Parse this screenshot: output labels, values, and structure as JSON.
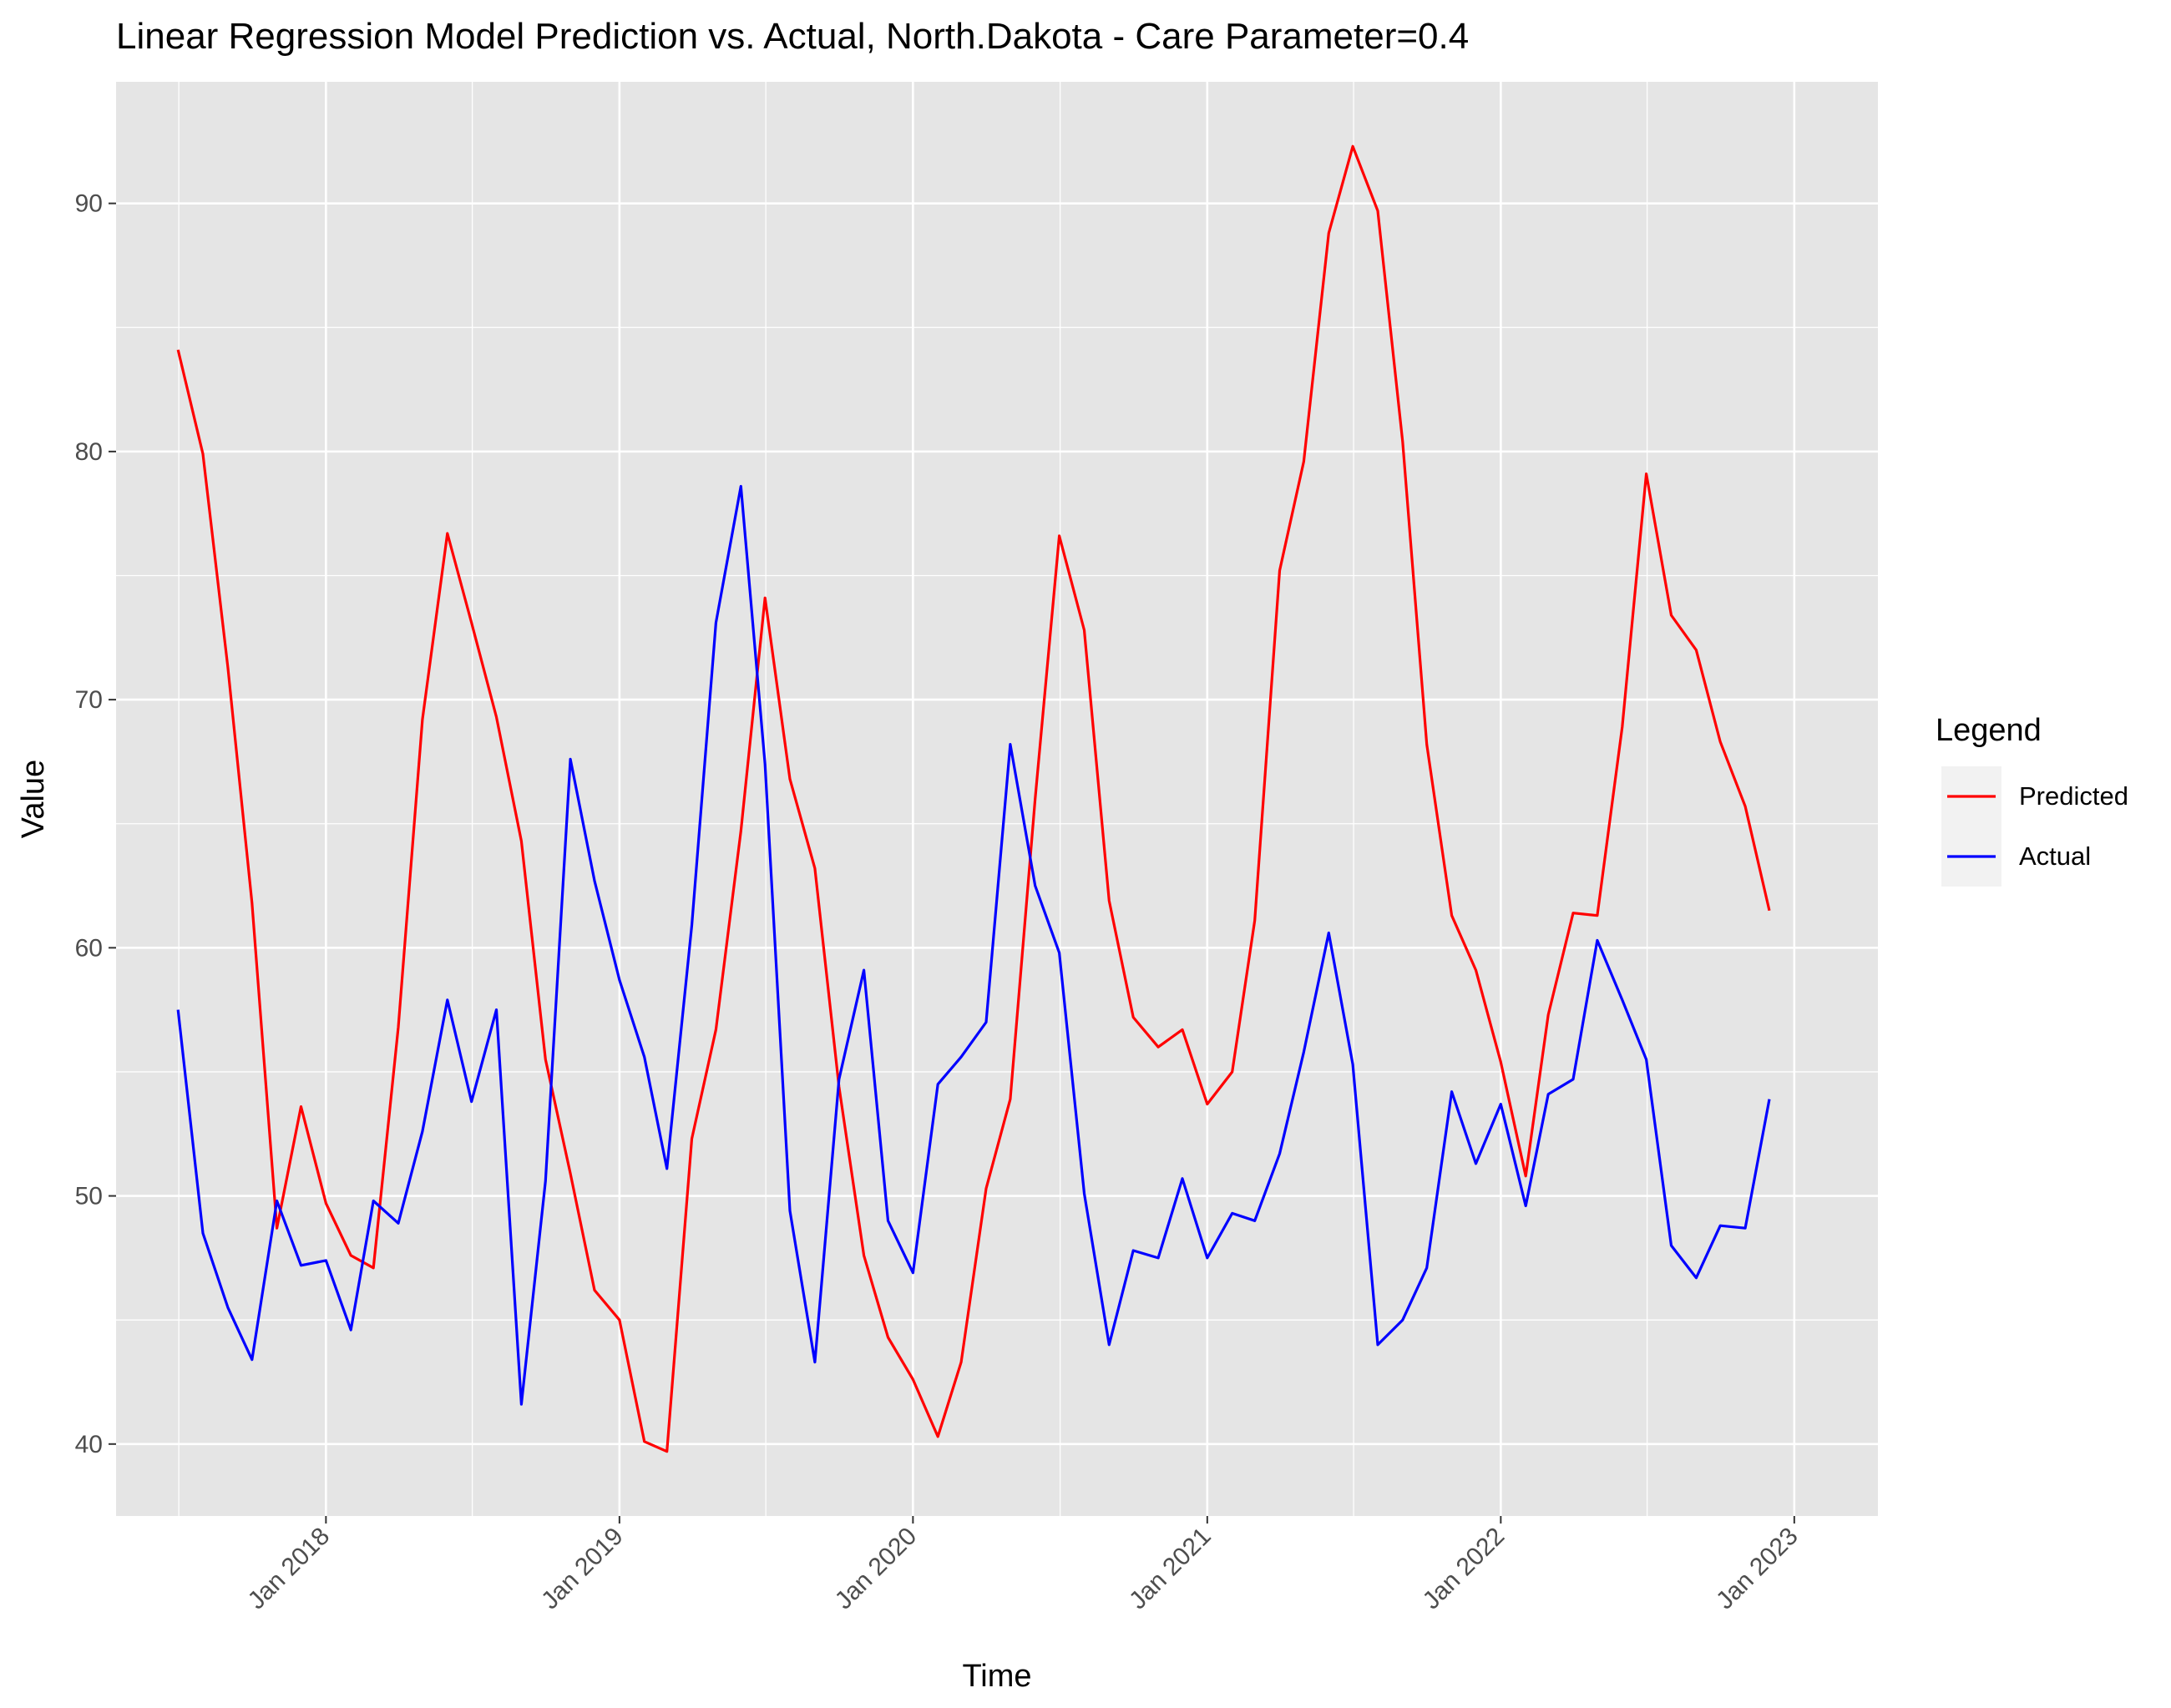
{
  "chart_data": {
    "type": "line",
    "title": "Linear Regression Model Prediction vs. Actual, North.Dakota - Care Parameter=0.4",
    "xlabel": "Time",
    "ylabel": "Value",
    "x_ticks": [
      "Jan 2018",
      "Jan 2019",
      "Jan 2020",
      "Jan 2021",
      "Jan 2022",
      "Jan 2023"
    ],
    "y_ticks": [
      40,
      50,
      60,
      70,
      80,
      90
    ],
    "xlim": [
      "2017-04-15",
      "2023-04-15"
    ],
    "ylim": [
      37.1,
      94.9
    ],
    "grid": true,
    "legend": {
      "title": "Legend",
      "placement": "right"
    },
    "x": [
      "2017-07-01",
      "2017-08-01",
      "2017-09-01",
      "2017-10-01",
      "2017-11-01",
      "2017-12-01",
      "2018-01-01",
      "2018-02-01",
      "2018-03-01",
      "2018-04-01",
      "2018-05-01",
      "2018-06-01",
      "2018-07-01",
      "2018-08-01",
      "2018-09-01",
      "2018-10-01",
      "2018-11-01",
      "2018-12-01",
      "2019-01-01",
      "2019-02-01",
      "2019-03-01",
      "2019-04-01",
      "2019-05-01",
      "2019-06-01",
      "2019-07-01",
      "2019-08-01",
      "2019-09-01",
      "2019-10-01",
      "2019-11-01",
      "2019-12-01",
      "2020-01-01",
      "2020-02-01",
      "2020-03-01",
      "2020-04-01",
      "2020-05-01",
      "2020-06-01",
      "2020-07-01",
      "2020-08-01",
      "2020-09-01",
      "2020-10-01",
      "2020-11-01",
      "2020-12-01",
      "2021-01-01",
      "2021-02-01",
      "2021-03-01",
      "2021-04-01",
      "2021-05-01",
      "2021-06-01",
      "2021-07-01",
      "2021-08-01",
      "2021-09-01",
      "2021-10-01",
      "2021-11-01",
      "2021-12-01",
      "2022-01-01",
      "2022-02-01",
      "2022-03-01",
      "2022-04-01",
      "2022-05-01",
      "2022-06-01",
      "2022-07-01",
      "2022-08-01",
      "2022-09-01",
      "2022-10-01",
      "2022-11-01",
      "2022-12-01"
    ],
    "series": [
      {
        "name": "Predicted",
        "color": "#ff0000",
        "values": [
          84.1,
          79.9,
          71.3,
          61.8,
          48.7,
          53.6,
          49.7,
          47.6,
          47.1,
          56.8,
          69.2,
          76.7,
          73.1,
          69.3,
          64.3,
          55.5,
          50.9,
          46.2,
          45.0,
          40.1,
          39.7,
          52.3,
          56.7,
          64.7,
          74.1,
          66.8,
          63.2,
          54.4,
          47.6,
          44.3,
          42.6,
          40.3,
          43.3,
          50.3,
          53.9,
          66.0,
          76.6,
          72.8,
          61.9,
          57.2,
          56.0,
          56.7,
          53.7,
          55.0,
          61.1,
          75.2,
          79.6,
          88.8,
          92.3,
          89.7,
          80.4,
          68.2,
          61.3,
          59.1,
          55.4,
          50.8,
          57.3,
          61.4,
          61.3,
          68.9,
          79.1,
          73.4,
          72.0,
          68.3,
          65.7,
          61.5
        ]
      },
      {
        "name": "Actual",
        "color": "#0000ff",
        "values": [
          57.5,
          48.5,
          45.5,
          43.4,
          49.8,
          47.2,
          47.4,
          44.6,
          49.8,
          48.9,
          52.6,
          57.9,
          53.8,
          57.5,
          41.6,
          50.6,
          67.6,
          62.7,
          58.7,
          55.6,
          51.1,
          60.9,
          73.1,
          78.6,
          67.4,
          49.4,
          43.3,
          54.7,
          59.1,
          49.0,
          46.9,
          54.5,
          55.6,
          57.0,
          68.2,
          62.5,
          59.8,
          50.1,
          44.0,
          47.8,
          47.5,
          50.7,
          47.5,
          49.3,
          49.0,
          51.7,
          55.8,
          60.6,
          55.3,
          44.0,
          45.0,
          47.1,
          54.2,
          51.3,
          53.7,
          49.6,
          54.1,
          54.7,
          60.3,
          57.9,
          55.5,
          48.0,
          46.7,
          48.8,
          48.7,
          53.9
        ]
      }
    ]
  }
}
